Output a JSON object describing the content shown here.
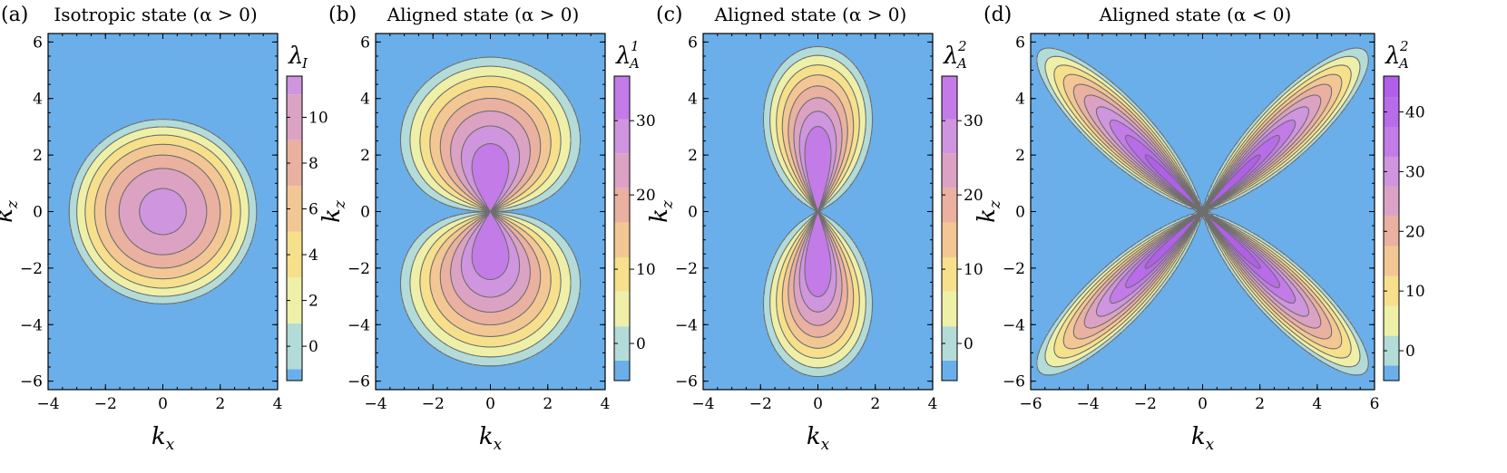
{
  "chart_data": [
    {
      "type": "contour",
      "panel_tag": "(a)",
      "title": "Isotropic state (α > 0)",
      "xlabel": "k",
      "xlabel_sub": "x",
      "ylabel": "k",
      "ylabel_sub": "z",
      "xlim": [
        -4,
        4
      ],
      "ylim": [
        -6.3,
        6.3
      ],
      "xticks": [
        -4,
        -2,
        0,
        2,
        4
      ],
      "yticks": [
        -6,
        -4,
        -2,
        0,
        2,
        4,
        6
      ],
      "colorbar": {
        "label": "λ",
        "label_sub": "I",
        "label_sup": "",
        "range": [
          -1.5,
          11.8
        ],
        "ticks": [
          0,
          2,
          4,
          6,
          8,
          10
        ],
        "levels": [
          -1.5,
          -1,
          1,
          3,
          5,
          7,
          9,
          11,
          11.8
        ]
      },
      "field": "isotropic"
    },
    {
      "type": "contour",
      "panel_tag": "(b)",
      "title": "Aligned state (α > 0)",
      "xlabel": "k",
      "xlabel_sub": "x",
      "ylabel": "k",
      "ylabel_sub": "z",
      "xlim": [
        -4,
        4
      ],
      "ylim": [
        -6.3,
        6.3
      ],
      "xticks": [
        -4,
        -2,
        0,
        2,
        4
      ],
      "yticks": [
        -6,
        -4,
        -2,
        0,
        2,
        4,
        6
      ],
      "colorbar": {
        "label": "λ",
        "label_sub": "A",
        "label_sup": "1",
        "range": [
          -5,
          36
        ],
        "ticks": [
          0,
          10,
          20,
          30
        ],
        "levels": [
          -5,
          -2.3,
          2.3,
          7,
          11.6,
          16.3,
          20.9,
          25.6,
          30.2,
          36
        ]
      },
      "field": "aligned_b"
    },
    {
      "type": "contour",
      "panel_tag": "(c)",
      "title": "Aligned state (α > 0)",
      "xlabel": "k",
      "xlabel_sub": "x",
      "ylabel": "k",
      "ylabel_sub": "z",
      "xlim": [
        -4,
        4
      ],
      "ylim": [
        -6.3,
        6.3
      ],
      "xticks": [
        -4,
        -2,
        0,
        2,
        4
      ],
      "yticks": [
        -6,
        -4,
        -2,
        0,
        2,
        4,
        6
      ],
      "colorbar": {
        "label": "λ",
        "label_sub": "A",
        "label_sup": "2",
        "range": [
          -5,
          36
        ],
        "ticks": [
          0,
          10,
          20,
          30
        ],
        "levels": [
          -5,
          -2.3,
          2.3,
          7,
          11.6,
          16.3,
          20.9,
          25.6,
          30.2,
          36
        ]
      },
      "field": "aligned_c"
    },
    {
      "type": "contour",
      "panel_tag": "(d)",
      "title": "Aligned state (α < 0)",
      "xlabel": "k",
      "xlabel_sub": "x",
      "ylabel": "k",
      "ylabel_sub": "z",
      "xlim": [
        -6,
        6
      ],
      "ylim": [
        -6.3,
        6.3
      ],
      "xticks": [
        -6,
        -4,
        -2,
        0,
        2,
        4,
        6
      ],
      "yticks": [
        -6,
        -4,
        -2,
        0,
        2,
        4,
        6
      ],
      "colorbar": {
        "label": "λ",
        "label_sub": "A",
        "label_sup": "2",
        "range": [
          -5,
          46
        ],
        "ticks": [
          0,
          10,
          20,
          30,
          40
        ],
        "levels": [
          -5,
          -2.5,
          2.5,
          7.5,
          12.5,
          17.5,
          22.5,
          27.5,
          32.5,
          37.5,
          42.5,
          46
        ]
      },
      "field": "aligned_d"
    }
  ],
  "colors": {
    "background_level": "#6aafea",
    "palette": [
      "#6aafea",
      "#b3dbd8",
      "#eef0a8",
      "#f6e08c",
      "#f3c793",
      "#eab0a0",
      "#dca2c4",
      "#cf95de",
      "#c37be8",
      "#b86cea",
      "#b15ee9",
      "#a855e8"
    ],
    "contour_line": "#6e6e6e"
  }
}
